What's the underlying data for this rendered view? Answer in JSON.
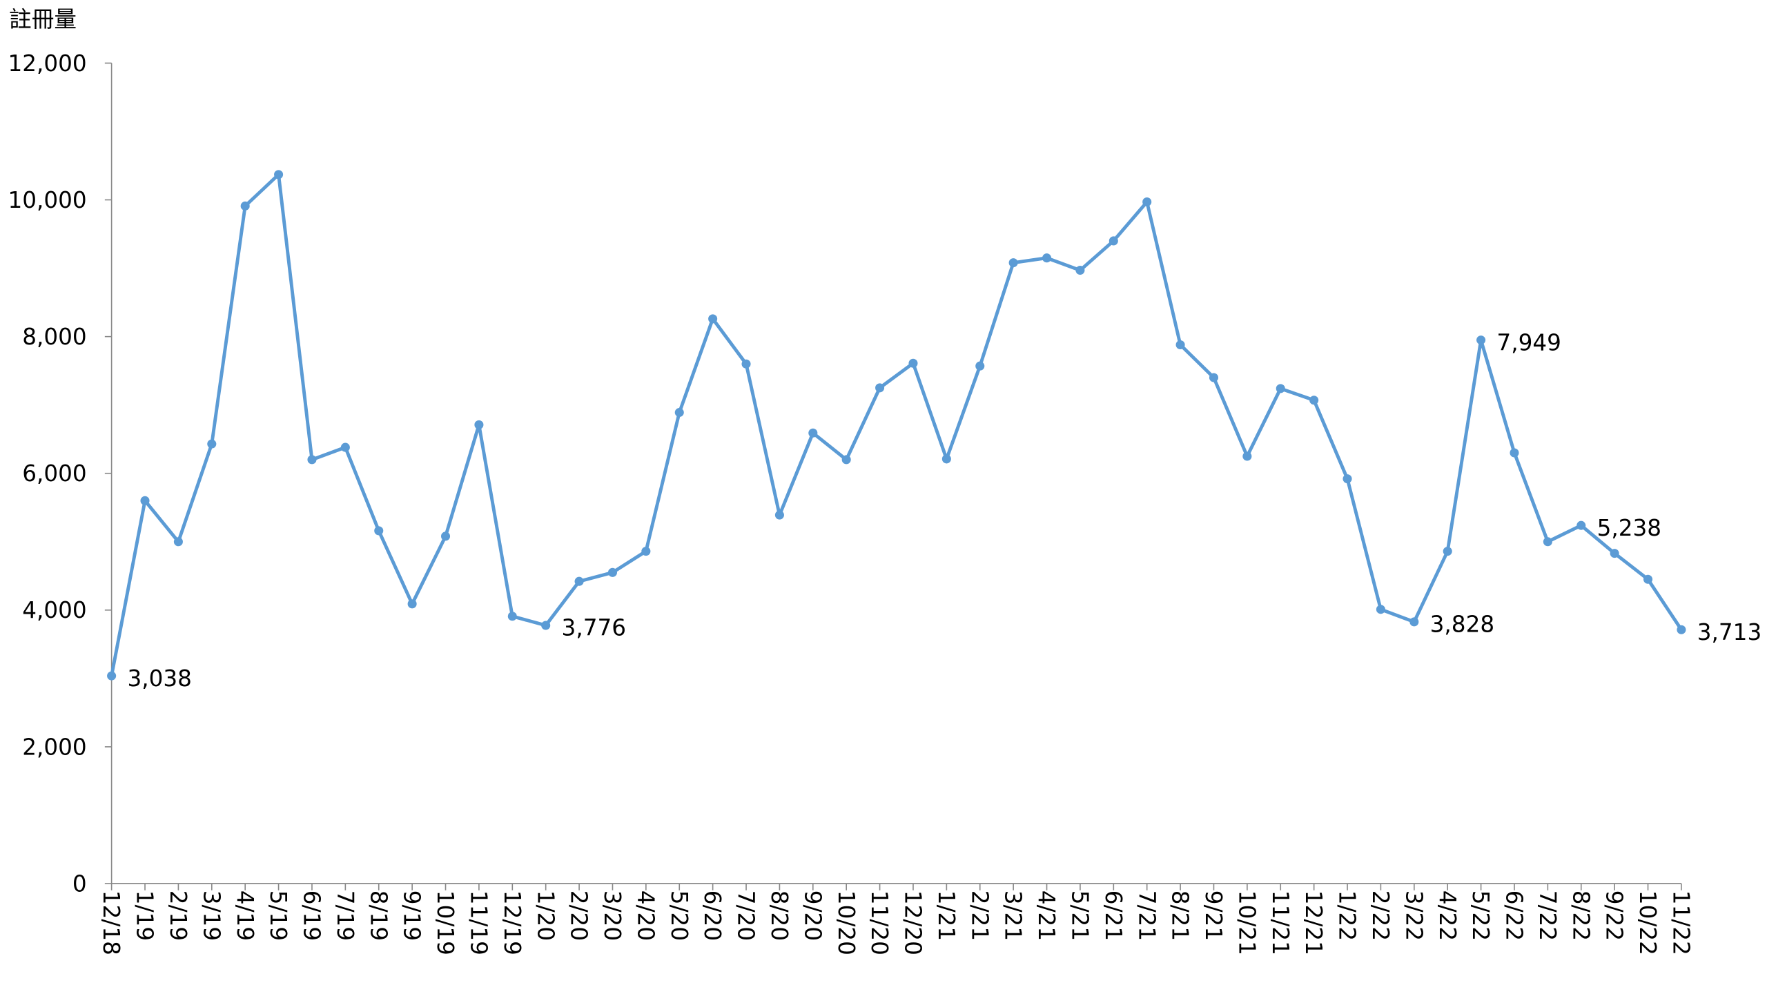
{
  "chart_data": {
    "type": "line",
    "y_axis_label": "註冊量",
    "categories": [
      "12/18",
      "1/19",
      "2/19",
      "3/19",
      "4/19",
      "5/19",
      "6/19",
      "7/19",
      "8/19",
      "9/19",
      "10/19",
      "11/19",
      "12/19",
      "1/20",
      "2/20",
      "3/20",
      "4/20",
      "5/20",
      "6/20",
      "7/20",
      "8/20",
      "9/20",
      "10/20",
      "11/20",
      "12/20",
      "1/21",
      "2/21",
      "3/21",
      "4/21",
      "5/21",
      "6/21",
      "7/21",
      "8/21",
      "9/21",
      "10/21",
      "11/21",
      "12/21",
      "1/22",
      "2/22",
      "3/22",
      "4/22",
      "5/22",
      "6/22",
      "7/22",
      "8/22",
      "9/22",
      "10/22",
      "11/22"
    ],
    "series": [
      {
        "color": "#5b9bd5",
        "values": [
          3038,
          5600,
          5000,
          6430,
          9910,
          10370,
          6200,
          6380,
          5160,
          4090,
          5080,
          6710,
          3910,
          3776,
          4420,
          4550,
          4860,
          6890,
          8260,
          7600,
          5390,
          6590,
          6200,
          7250,
          7610,
          6210,
          7570,
          9080,
          9150,
          8970,
          9400,
          9970,
          7880,
          7400,
          6250,
          7240,
          7070,
          5920,
          4010,
          3828,
          4860,
          7949,
          6300,
          5000,
          5238,
          4830,
          4450,
          3713
        ],
        "value_labels": [
          "3,038",
          null,
          null,
          null,
          null,
          null,
          null,
          null,
          null,
          null,
          null,
          null,
          null,
          "3,776",
          null,
          null,
          null,
          null,
          null,
          null,
          null,
          null,
          null,
          null,
          null,
          null,
          null,
          null,
          null,
          null,
          null,
          null,
          null,
          null,
          null,
          null,
          null,
          null,
          null,
          "3,828",
          null,
          "7,949",
          null,
          null,
          "5,238",
          null,
          null,
          "3,713"
        ]
      }
    ],
    "ylim": [
      0,
      12000
    ],
    "yticks": [
      0,
      {
        "value": 2000,
        "label": "2,000"
      },
      {
        "value": 4000,
        "label": "4,000"
      },
      {
        "value": 6000,
        "label": "6,000"
      },
      {
        "value": 8000,
        "label": "8,000"
      },
      {
        "value": 10000,
        "label": "10,000"
      },
      {
        "value": 12000,
        "label": "12,000"
      }
    ],
    "grid": false
  }
}
